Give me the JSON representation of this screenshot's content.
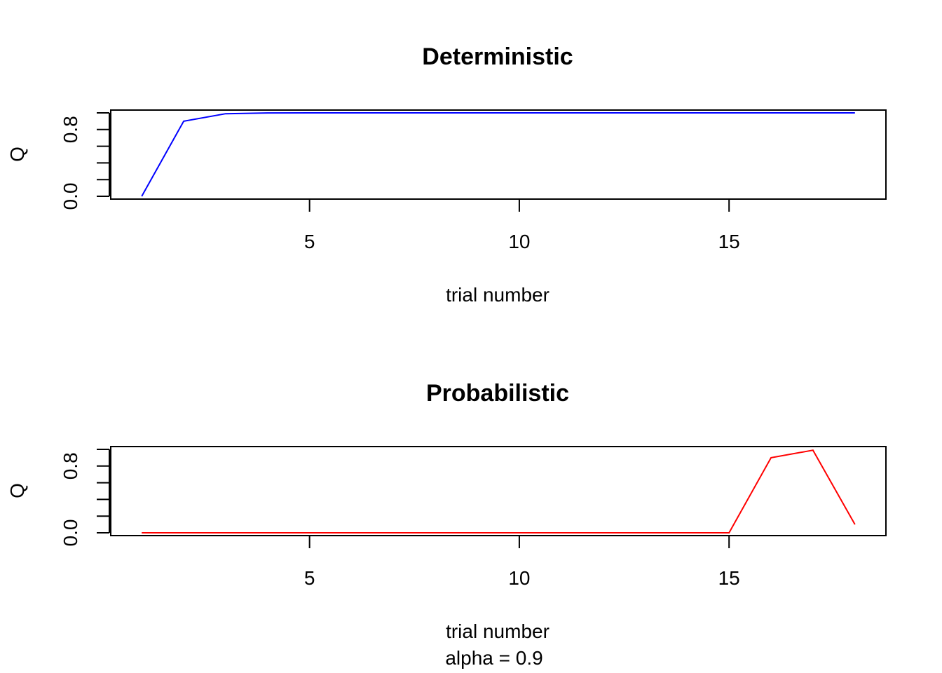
{
  "chart_data": [
    {
      "type": "line",
      "title": "Deterministic",
      "xlabel": "trial number",
      "ylabel": "Q",
      "subtitle": "",
      "xlim": [
        1,
        18
      ],
      "ylim": [
        0,
        1
      ],
      "x_ticks": [
        5,
        10,
        15
      ],
      "y_ticks": [
        0,
        0.2,
        0.4,
        0.6,
        0.8,
        1.0
      ],
      "y_tick_labels": [
        "0.0",
        "0.8"
      ],
      "y_tick_label_values": [
        0,
        0.8
      ],
      "line_color": "#0000ff",
      "series": [
        {
          "x": [
            1,
            2,
            3,
            4,
            5,
            6,
            7,
            8,
            9,
            10,
            11,
            12,
            13,
            14,
            15,
            16,
            17,
            18
          ],
          "values": [
            0.0,
            0.9,
            0.99,
            0.999,
            1.0,
            1.0,
            1.0,
            1.0,
            1.0,
            1.0,
            1.0,
            1.0,
            1.0,
            1.0,
            1.0,
            1.0,
            1.0,
            1.0
          ]
        }
      ]
    },
    {
      "type": "line",
      "title": "Probabilistic",
      "xlabel": "trial number",
      "ylabel": "Q",
      "subtitle": "alpha = 0.9",
      "xlim": [
        1,
        18
      ],
      "ylim": [
        0,
        1
      ],
      "x_ticks": [
        5,
        10,
        15
      ],
      "y_ticks": [
        0,
        0.2,
        0.4,
        0.6,
        0.8,
        1.0
      ],
      "y_tick_labels": [
        "0.0",
        "0.8"
      ],
      "y_tick_label_values": [
        0,
        0.8
      ],
      "line_color": "#ff0000",
      "series": [
        {
          "x": [
            1,
            2,
            3,
            4,
            5,
            6,
            7,
            8,
            9,
            10,
            11,
            12,
            13,
            14,
            15,
            16,
            17,
            18
          ],
          "values": [
            0,
            0,
            0,
            0,
            0,
            0,
            0,
            0,
            0,
            0,
            0,
            0,
            0,
            0,
            0,
            0.9,
            0.99,
            0.1
          ]
        }
      ]
    }
  ]
}
